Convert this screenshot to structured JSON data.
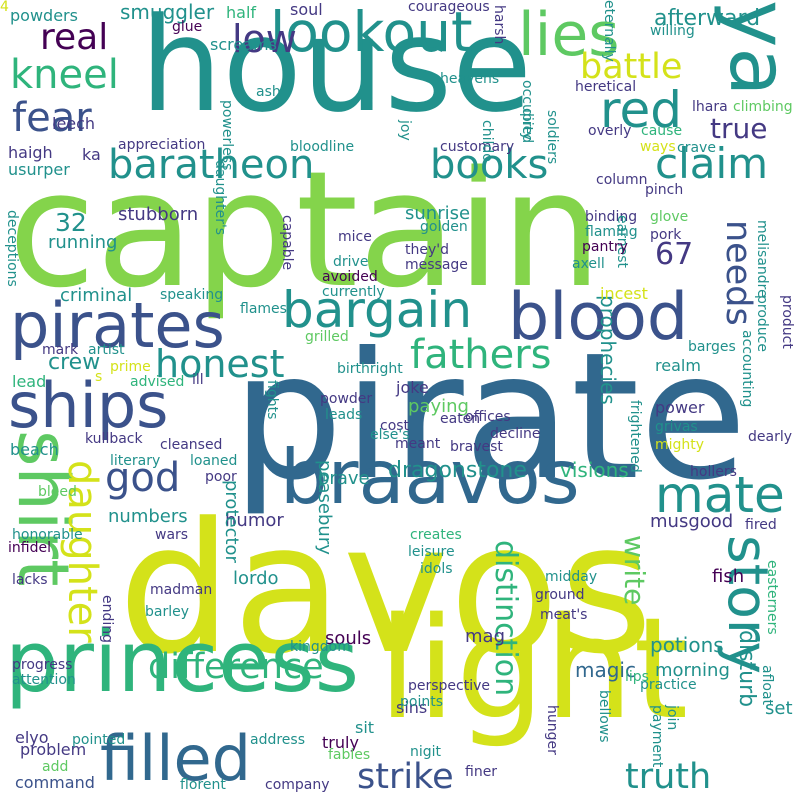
{
  "cloud": {
    "palette": {
      "yellow": "#d4e21a",
      "green": "#5ec962",
      "lightgreen": "#84d44b",
      "teal": "#21918c",
      "seagreen": "#2fb47c",
      "blue": "#31688e",
      "navy": "#3b528b",
      "indigo": "#443983",
      "purple": "#440154",
      "darkblue": "#2c728e"
    },
    "words": [
      {
        "t": "captain",
        "c": "lightgreen"
      },
      {
        "t": "pirate",
        "c": "blue"
      },
      {
        "t": "davos",
        "c": "yellow"
      },
      {
        "t": "house",
        "c": "teal"
      },
      {
        "t": "light",
        "c": "yellow"
      },
      {
        "t": "princess",
        "c": "seagreen"
      },
      {
        "t": "braavos",
        "c": "blue"
      },
      {
        "t": "pirates",
        "c": "navy"
      },
      {
        "t": "ships",
        "c": "navy"
      },
      {
        "t": "blood",
        "c": "navy"
      },
      {
        "t": "lookout",
        "c": "teal"
      },
      {
        "t": "bargain",
        "c": "teal"
      },
      {
        "t": "ya",
        "c": "teal"
      },
      {
        "t": "lies",
        "c": "green"
      },
      {
        "t": "filled",
        "c": "blue"
      },
      {
        "t": "shirt",
        "c": "green"
      },
      {
        "t": "red",
        "c": "teal"
      },
      {
        "t": "baratheon",
        "c": "teal"
      },
      {
        "t": "books",
        "c": "teal"
      },
      {
        "t": "claim",
        "c": "teal"
      },
      {
        "t": "mate",
        "c": "teal"
      },
      {
        "t": "story",
        "c": "teal"
      },
      {
        "t": "fathers",
        "c": "seagreen"
      },
      {
        "t": "honest",
        "c": "teal"
      },
      {
        "t": "difference",
        "c": "seagreen"
      },
      {
        "t": "strike",
        "c": "navy"
      },
      {
        "t": "truth",
        "c": "teal"
      },
      {
        "t": "daughter",
        "c": "yellow"
      },
      {
        "t": "god",
        "c": "navy"
      },
      {
        "t": "fear",
        "c": "navy"
      },
      {
        "t": "kneel",
        "c": "seagreen"
      },
      {
        "t": "real",
        "c": "purple"
      },
      {
        "t": "low",
        "c": "indigo"
      },
      {
        "t": "battle",
        "c": "yellow"
      },
      {
        "t": "true",
        "c": "indigo"
      },
      {
        "t": "needs",
        "c": "navy"
      },
      {
        "t": "write",
        "c": "green"
      },
      {
        "t": "distinction",
        "c": "seagreen"
      },
      {
        "t": "afterward",
        "c": "teal"
      },
      {
        "t": "67",
        "c": "indigo"
      },
      {
        "t": "32",
        "c": "teal"
      },
      {
        "t": "disturb",
        "c": "teal"
      },
      {
        "t": "crew",
        "c": "teal"
      },
      {
        "t": "potions",
        "c": "teal"
      },
      {
        "t": "souls",
        "c": "purple"
      },
      {
        "t": "visions",
        "c": "seagreen"
      },
      {
        "t": "dragonstone",
        "c": "teal"
      },
      {
        "t": "prophecies",
        "c": "teal"
      },
      {
        "t": "musgood",
        "c": "indigo"
      },
      {
        "t": "magic",
        "c": "blue"
      },
      {
        "t": "morning",
        "c": "teal"
      },
      {
        "t": "smuggler",
        "c": "teal"
      },
      {
        "t": "stubborn",
        "c": "indigo"
      },
      {
        "t": "criminal",
        "c": "teal"
      },
      {
        "t": "running",
        "c": "teal"
      },
      {
        "t": "sunrise",
        "c": "teal"
      },
      {
        "t": "numbers",
        "c": "teal"
      },
      {
        "t": "humor",
        "c": "indigo"
      },
      {
        "t": "lordo",
        "c": "teal"
      },
      {
        "t": "protector",
        "c": "teal"
      },
      {
        "t": "peasebury",
        "c": "teal"
      },
      {
        "t": "fish",
        "c": "purple"
      },
      {
        "t": "brave",
        "c": "teal"
      },
      {
        "t": "joke",
        "c": "indigo"
      },
      {
        "t": "paying",
        "c": "green"
      },
      {
        "t": "incest",
        "c": "yellow"
      },
      {
        "t": "power",
        "c": "indigo"
      },
      {
        "t": "sins",
        "c": "indigo"
      },
      {
        "t": "mag",
        "c": "indigo"
      },
      {
        "t": "problem",
        "c": "indigo"
      },
      {
        "t": "command",
        "c": "navy"
      },
      {
        "t": "truly",
        "c": "purple"
      },
      {
        "t": "set",
        "c": "teal"
      },
      {
        "t": "sit",
        "c": "teal"
      },
      {
        "t": "soul",
        "c": "indigo"
      },
      {
        "t": "beach",
        "c": "teal"
      },
      {
        "t": "lead",
        "c": "seagreen"
      },
      {
        "t": "realm",
        "c": "teal"
      },
      {
        "t": "leads",
        "c": "teal"
      },
      {
        "t": "powders",
        "c": "teal"
      },
      {
        "t": "leech",
        "c": "indigo"
      },
      {
        "t": "haigh",
        "c": "indigo"
      },
      {
        "t": "usurper",
        "c": "teal"
      },
      {
        "t": "half",
        "c": "seagreen"
      },
      {
        "t": "screams",
        "c": "teal"
      },
      {
        "t": "glue",
        "c": "purple"
      },
      {
        "t": "courageous",
        "c": "indigo"
      },
      {
        "t": "willing",
        "c": "teal"
      },
      {
        "t": "eternally",
        "c": "teal"
      },
      {
        "t": "harsh",
        "c": "indigo"
      },
      {
        "t": "heavens",
        "c": "teal"
      },
      {
        "t": "occupied",
        "c": "teal"
      },
      {
        "t": "heretical",
        "c": "indigo"
      },
      {
        "t": "dirty",
        "c": "teal"
      },
      {
        "t": "lhara",
        "c": "indigo"
      },
      {
        "t": "climbing",
        "c": "green"
      },
      {
        "t": "ash",
        "c": "teal"
      },
      {
        "t": "powerless",
        "c": "teal"
      },
      {
        "t": "appreciation",
        "c": "indigo"
      },
      {
        "t": "ka",
        "c": "indigo"
      },
      {
        "t": "bloodline",
        "c": "teal"
      },
      {
        "t": "customary",
        "c": "indigo"
      },
      {
        "t": "joy",
        "c": "teal"
      },
      {
        "t": "childo",
        "c": "teal"
      },
      {
        "t": "overly",
        "c": "indigo"
      },
      {
        "t": "cause",
        "c": "seagreen"
      },
      {
        "t": "ways",
        "c": "yellow"
      },
      {
        "t": "crave",
        "c": "teal"
      },
      {
        "t": "soldiers",
        "c": "teal"
      },
      {
        "t": "column",
        "c": "indigo"
      },
      {
        "t": "pinch",
        "c": "indigo"
      },
      {
        "t": "binding",
        "c": "indigo"
      },
      {
        "t": "glove",
        "c": "green"
      },
      {
        "t": "earnest",
        "c": "teal"
      },
      {
        "t": "pork",
        "c": "indigo"
      },
      {
        "t": "flaming",
        "c": "teal"
      },
      {
        "t": "pantry",
        "c": "purple"
      },
      {
        "t": "axell",
        "c": "teal"
      },
      {
        "t": "melisandre",
        "c": "teal"
      },
      {
        "t": "golden",
        "c": "teal"
      },
      {
        "t": "they'd",
        "c": "indigo"
      },
      {
        "t": "message",
        "c": "indigo"
      },
      {
        "t": "mice",
        "c": "indigo"
      },
      {
        "t": "drive",
        "c": "teal"
      },
      {
        "t": "avoided",
        "c": "purple"
      },
      {
        "t": "currently",
        "c": "teal"
      },
      {
        "t": "capable",
        "c": "indigo"
      },
      {
        "t": "daughter's",
        "c": "teal"
      },
      {
        "t": "deceptions",
        "c": "teal"
      },
      {
        "t": "speaking",
        "c": "teal"
      },
      {
        "t": "flames",
        "c": "teal"
      },
      {
        "t": "grilled",
        "c": "green"
      },
      {
        "t": "birthright",
        "c": "teal"
      },
      {
        "t": "produce",
        "c": "teal"
      },
      {
        "t": "product",
        "c": "indigo"
      },
      {
        "t": "barges",
        "c": "teal"
      },
      {
        "t": "accounting",
        "c": "teal"
      },
      {
        "t": "mark",
        "c": "indigo"
      },
      {
        "t": "artist",
        "c": "teal"
      },
      {
        "t": "s",
        "c": "yellow"
      },
      {
        "t": "prime",
        "c": "yellow"
      },
      {
        "t": "advised",
        "c": "seagreen"
      },
      {
        "t": "ill",
        "c": "indigo"
      },
      {
        "t": "powder",
        "c": "indigo"
      },
      {
        "t": "cost",
        "c": "indigo"
      },
      {
        "t": "eaten",
        "c": "indigo"
      },
      {
        "t": "offices",
        "c": "indigo"
      },
      {
        "t": "decline",
        "c": "indigo"
      },
      {
        "t": "grivas",
        "c": "teal"
      },
      {
        "t": "mighty",
        "c": "yellow"
      },
      {
        "t": "dearly",
        "c": "indigo"
      },
      {
        "t": "kullback",
        "c": "indigo"
      },
      {
        "t": "cleansed",
        "c": "indigo"
      },
      {
        "t": "literary",
        "c": "teal"
      },
      {
        "t": "loaned",
        "c": "teal"
      },
      {
        "t": "poor",
        "c": "indigo"
      },
      {
        "t": "fights",
        "c": "teal"
      },
      {
        "t": "else's",
        "c": "teal"
      },
      {
        "t": "meant",
        "c": "indigo"
      },
      {
        "t": "bravest",
        "c": "indigo"
      },
      {
        "t": "frightened",
        "c": "teal"
      },
      {
        "t": "hollers",
        "c": "indigo"
      },
      {
        "t": "bleed",
        "c": "green"
      },
      {
        "t": "wars",
        "c": "indigo"
      },
      {
        "t": "fired",
        "c": "indigo"
      },
      {
        "t": "honorable",
        "c": "teal"
      },
      {
        "t": "infidel",
        "c": "purple"
      },
      {
        "t": "creates",
        "c": "seagreen"
      },
      {
        "t": "leisure",
        "c": "teal"
      },
      {
        "t": "idols",
        "c": "teal"
      },
      {
        "t": "lacks",
        "c": "indigo"
      },
      {
        "t": "madman",
        "c": "indigo"
      },
      {
        "t": "barley",
        "c": "teal"
      },
      {
        "t": "ending",
        "c": "indigo"
      },
      {
        "t": "midday",
        "c": "teal"
      },
      {
        "t": "ground",
        "c": "indigo"
      },
      {
        "t": "meat's",
        "c": "indigo"
      },
      {
        "t": "easterners",
        "c": "seagreen"
      },
      {
        "t": "kingdom",
        "c": "teal"
      },
      {
        "t": "progress",
        "c": "indigo"
      },
      {
        "t": "attention",
        "c": "teal"
      },
      {
        "t": "lips",
        "c": "seagreen"
      },
      {
        "t": "bellows",
        "c": "teal"
      },
      {
        "t": "practice",
        "c": "teal"
      },
      {
        "t": "afloat",
        "c": "teal"
      },
      {
        "t": "perspective",
        "c": "indigo"
      },
      {
        "t": "points",
        "c": "teal"
      },
      {
        "t": "join",
        "c": "teal"
      },
      {
        "t": "pointed",
        "c": "teal"
      },
      {
        "t": "add",
        "c": "green"
      },
      {
        "t": "address",
        "c": "teal"
      },
      {
        "t": "fables",
        "c": "green"
      },
      {
        "t": "nigit",
        "c": "teal"
      },
      {
        "t": "hunger",
        "c": "indigo"
      },
      {
        "t": "payment",
        "c": "teal"
      },
      {
        "t": "florent",
        "c": "teal"
      },
      {
        "t": "company",
        "c": "indigo"
      },
      {
        "t": "finer",
        "c": "indigo"
      },
      {
        "t": "elyo",
        "c": "indigo"
      },
      {
        "t": "4",
        "c": "yellow"
      }
    ]
  }
}
